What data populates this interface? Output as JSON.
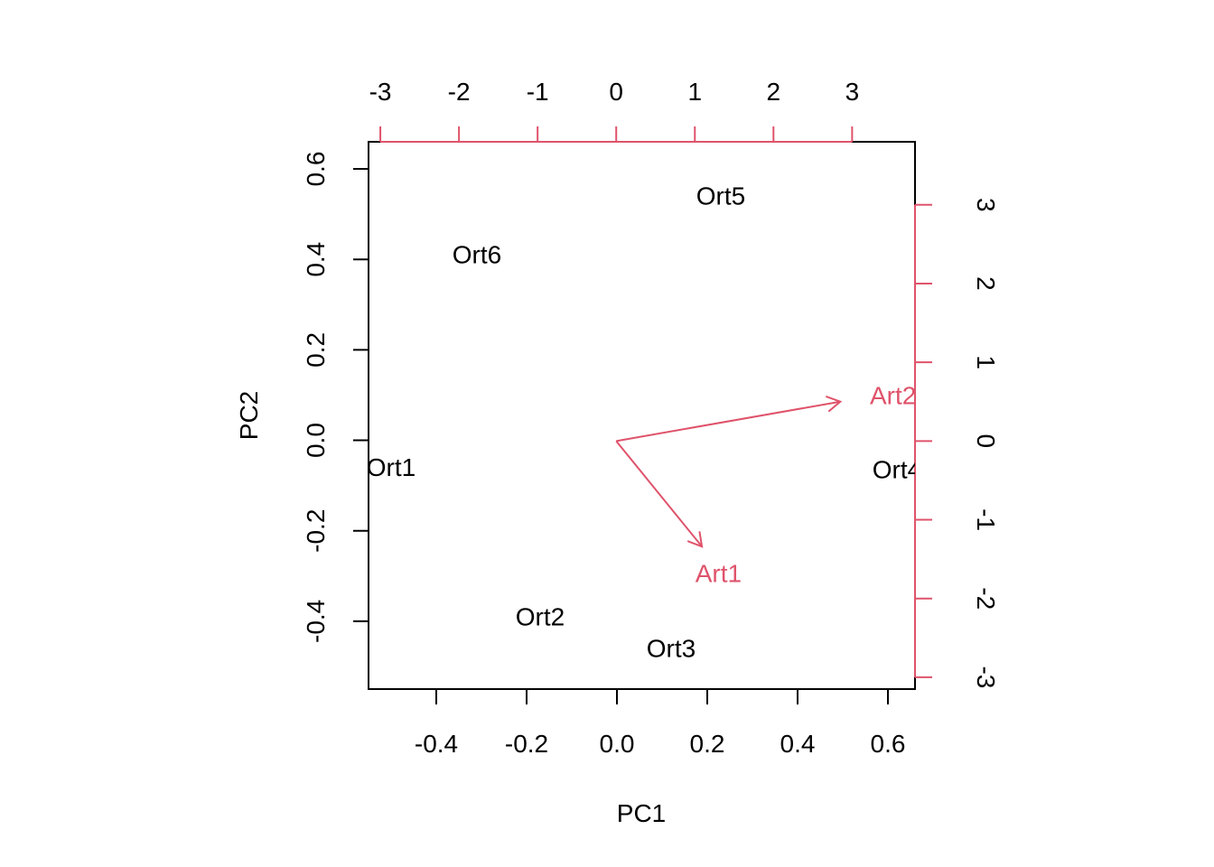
{
  "chart_data": {
    "type": "scatter",
    "subtype": "biplot",
    "title": "",
    "xlabel": "PC1",
    "ylabel": "PC2",
    "xlim": [
      -0.55,
      0.66
    ],
    "ylim": [
      -0.55,
      0.66
    ],
    "x_ticks": [
      -0.4,
      -0.2,
      0.0,
      0.2,
      0.4,
      0.6
    ],
    "y_ticks": [
      -0.4,
      -0.2,
      0.0,
      0.2,
      0.4,
      0.6
    ],
    "x_tick_labels": [
      "-0.4",
      "-0.2",
      "0.0",
      "0.2",
      "0.4",
      "0.6"
    ],
    "y_tick_labels": [
      "-0.4",
      "-0.2",
      "0.0",
      "0.2",
      "0.4",
      "0.6"
    ],
    "observations": [
      {
        "label": "Ort1",
        "x": -0.5,
        "y": -0.06
      },
      {
        "label": "Ort2",
        "x": -0.17,
        "y": -0.39
      },
      {
        "label": "Ort3",
        "x": 0.12,
        "y": -0.46
      },
      {
        "label": "Ort4",
        "x": 0.62,
        "y": -0.065
      },
      {
        "label": "Ort5",
        "x": 0.23,
        "y": 0.54
      },
      {
        "label": "Ort6",
        "x": -0.31,
        "y": 0.41
      }
    ],
    "loadings_axis": {
      "lim": [
        -3.15,
        3.8
      ],
      "top_ticks": [
        -3,
        -2,
        -1,
        0,
        1,
        2,
        3
      ],
      "top_tick_labels": [
        "-3",
        "-2",
        "-1",
        "0",
        "1",
        "2",
        "3"
      ],
      "right_ticks": [
        -3,
        -2,
        -1,
        0,
        1,
        2,
        3
      ],
      "right_tick_labels": [
        "-3",
        "-2",
        "-1",
        "0",
        "1",
        "2",
        "3"
      ]
    },
    "loadings": [
      {
        "label": "Art1",
        "x": 1.09,
        "y": -1.34
      },
      {
        "label": "Art2",
        "x": 2.85,
        "y": 0.5
      }
    ],
    "loading_label_positions": [
      {
        "label": "Art1",
        "x": 1.3,
        "y": -1.68
      },
      {
        "label": "Art2",
        "x": 3.52,
        "y": 0.58
      }
    ],
    "colors": {
      "points": "#000000",
      "loadings": "#df536b",
      "frame": "#000000"
    },
    "grid": false,
    "legend": "none"
  }
}
